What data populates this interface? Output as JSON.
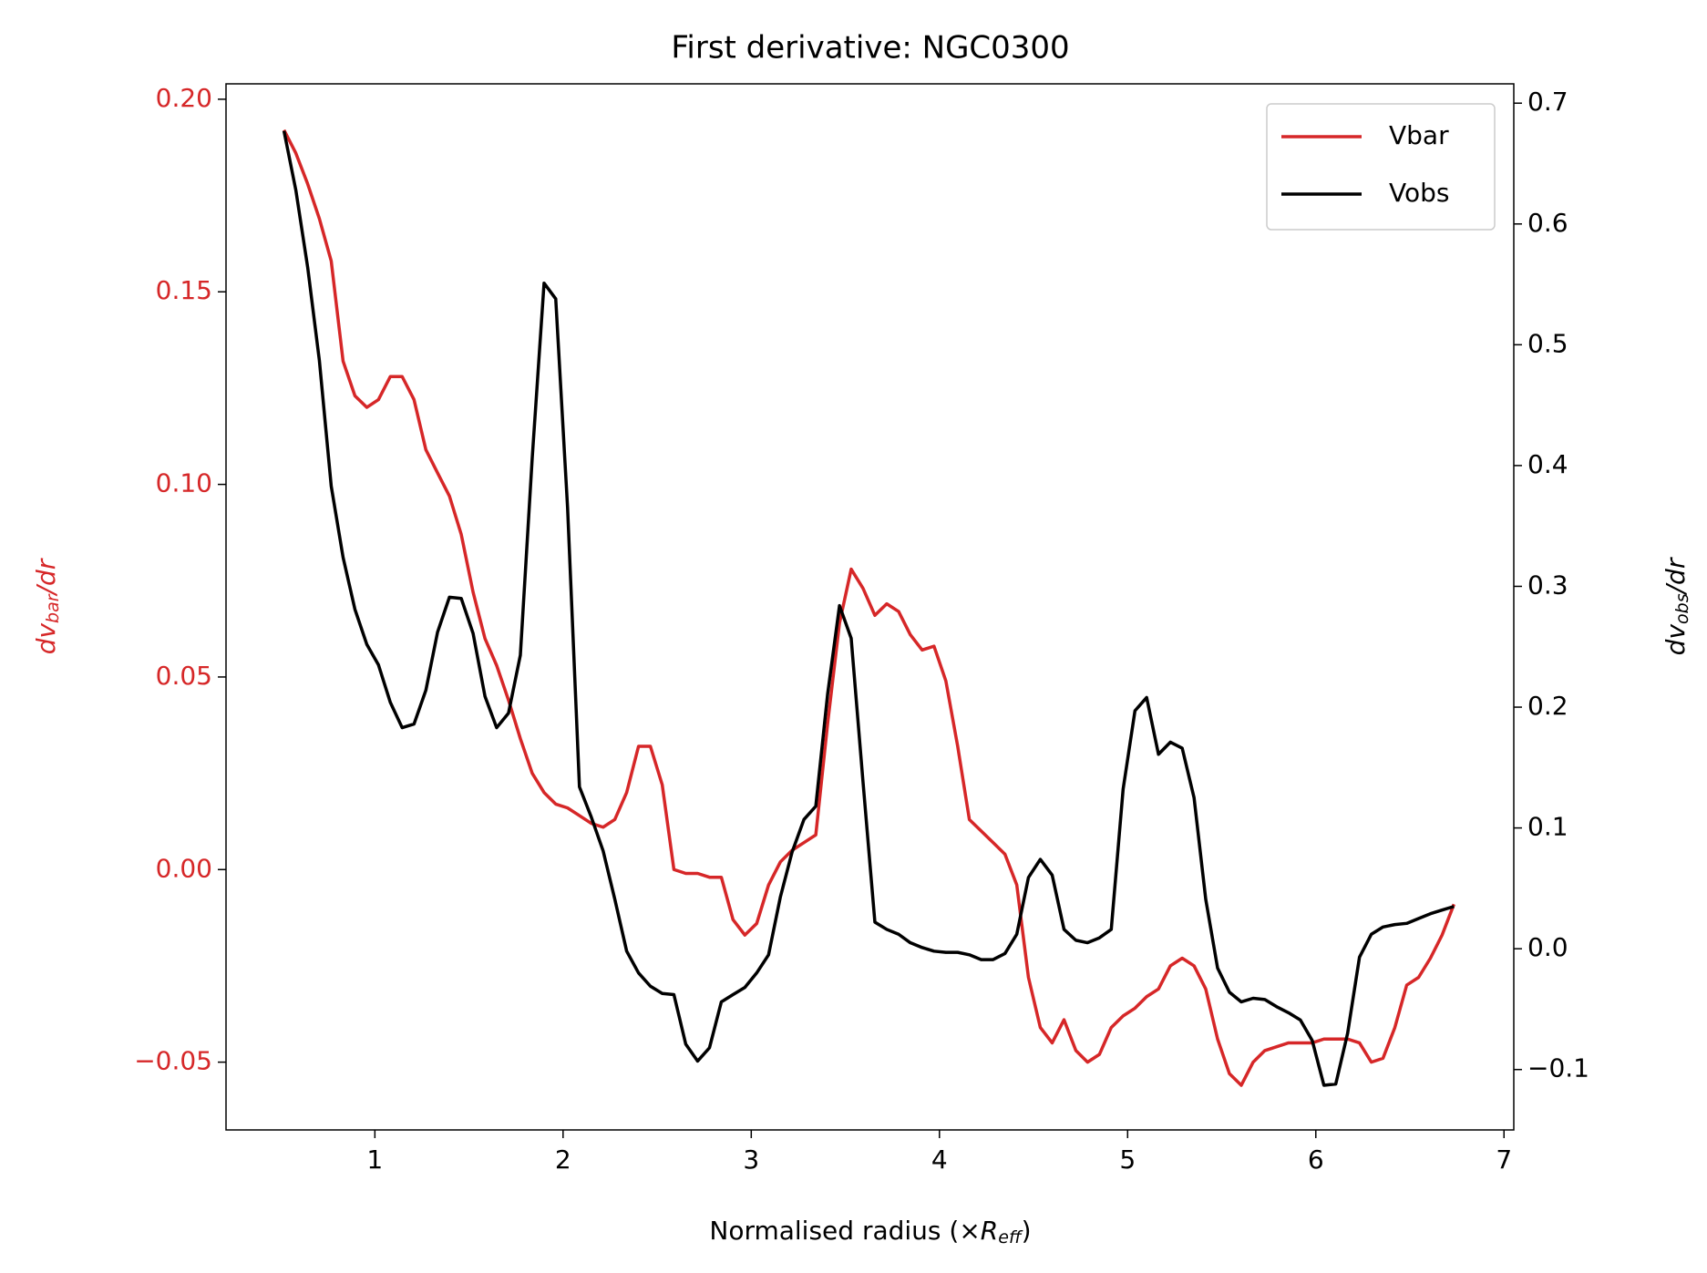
{
  "chart_data": {
    "type": "line",
    "title": "First derivative: NGC0300",
    "x_label": {
      "text": "Normalised radius (×",
      "symbol": "R",
      "subscript": "eff",
      "close": ")"
    },
    "y_label": {
      "main": "dv",
      "sub": "bar",
      "rest": "/dr"
    },
    "y2_label": {
      "main": "dv",
      "sub": "obs",
      "rest": "/dr"
    },
    "y_label_color": "#d62728",
    "legend": "upper right",
    "x": [
      0.517,
      0.58,
      0.643,
      0.705,
      0.768,
      0.831,
      0.894,
      0.957,
      1.019,
      1.082,
      1.145,
      1.208,
      1.271,
      1.333,
      1.396,
      1.459,
      1.522,
      1.585,
      1.647,
      1.71,
      1.773,
      1.836,
      1.899,
      1.961,
      2.024,
      2.087,
      2.15,
      2.213,
      2.275,
      2.338,
      2.401,
      2.464,
      2.527,
      2.589,
      2.652,
      2.715,
      2.778,
      2.841,
      2.903,
      2.966,
      3.029,
      3.092,
      3.155,
      3.217,
      3.28,
      3.343,
      3.406,
      3.469,
      3.531,
      3.594,
      3.657,
      3.72,
      3.783,
      3.845,
      3.908,
      3.971,
      4.034,
      4.097,
      4.159,
      4.222,
      4.285,
      4.348,
      4.411,
      4.473,
      4.536,
      4.599,
      4.662,
      4.725,
      4.787,
      4.85,
      4.913,
      4.976,
      5.039,
      5.101,
      5.164,
      5.227,
      5.29,
      5.353,
      5.415,
      5.478,
      5.541,
      5.604,
      5.667,
      5.729,
      5.792,
      5.855,
      5.918,
      5.981,
      6.043,
      6.106,
      6.169,
      6.232,
      6.295,
      6.357,
      6.42,
      6.483,
      6.546,
      6.609,
      6.671,
      6.734
    ],
    "series": [
      {
        "name": "Vbar",
        "color": "#d62728",
        "axis": "y",
        "values": [
          0.192,
          0.186,
          0.178,
          0.169,
          0.158,
          0.132,
          0.123,
          0.12,
          0.122,
          0.128,
          0.128,
          0.122,
          0.109,
          0.103,
          0.097,
          0.087,
          0.072,
          0.06,
          0.053,
          0.044,
          0.034,
          0.025,
          0.02,
          0.017,
          0.016,
          0.014,
          0.012,
          0.011,
          0.013,
          0.02,
          0.032,
          0.032,
          0.022,
          0.0,
          -0.001,
          -0.001,
          -0.002,
          -0.002,
          -0.013,
          -0.017,
          -0.014,
          -0.004,
          0.002,
          0.005,
          0.007,
          0.009,
          0.038,
          0.064,
          0.078,
          0.073,
          0.066,
          0.069,
          0.067,
          0.061,
          0.057,
          0.058,
          0.049,
          0.032,
          0.013,
          0.01,
          0.007,
          0.004,
          -0.004,
          -0.028,
          -0.041,
          -0.045,
          -0.039,
          -0.047,
          -0.05,
          -0.048,
          -0.041,
          -0.038,
          -0.036,
          -0.033,
          -0.031,
          -0.025,
          -0.023,
          -0.025,
          -0.031,
          -0.044,
          -0.053,
          -0.056,
          -0.05,
          -0.047,
          -0.046,
          -0.045,
          -0.045,
          -0.045,
          -0.044,
          -0.044,
          -0.044,
          -0.045,
          -0.05,
          -0.049,
          -0.041,
          -0.03,
          -0.028,
          -0.023,
          -0.017,
          -0.009
        ]
      },
      {
        "name": "Vobs",
        "color": "#000000",
        "axis": "y2",
        "values": [
          0.677,
          0.628,
          0.564,
          0.487,
          0.383,
          0.324,
          0.281,
          0.252,
          0.235,
          0.204,
          0.183,
          0.186,
          0.214,
          0.262,
          0.291,
          0.29,
          0.261,
          0.209,
          0.183,
          0.195,
          0.243,
          0.406,
          0.551,
          0.538,
          0.365,
          0.134,
          0.109,
          0.081,
          0.041,
          -0.002,
          -0.02,
          -0.031,
          -0.037,
          -0.038,
          -0.079,
          -0.093,
          -0.082,
          -0.044,
          -0.038,
          -0.032,
          -0.02,
          -0.005,
          0.043,
          0.08,
          0.107,
          0.118,
          0.211,
          0.284,
          0.257,
          0.138,
          0.022,
          0.016,
          0.012,
          0.005,
          0.001,
          -0.002,
          -0.003,
          -0.003,
          -0.005,
          -0.009,
          -0.009,
          -0.004,
          0.012,
          0.059,
          0.074,
          0.061,
          0.016,
          0.007,
          0.005,
          0.009,
          0.016,
          0.132,
          0.197,
          0.208,
          0.161,
          0.171,
          0.166,
          0.125,
          0.041,
          -0.016,
          -0.036,
          -0.044,
          -0.041,
          -0.042,
          -0.048,
          -0.053,
          -0.059,
          -0.076,
          -0.113,
          -0.112,
          -0.07,
          -0.007,
          0.012,
          0.018,
          0.02,
          0.021,
          0.025,
          0.029,
          0.032,
          0.035
        ]
      }
    ],
    "xlim": [
      0.209,
      7.052
    ],
    "xticks": [
      1,
      2,
      3,
      4,
      5,
      6,
      7
    ],
    "ylim": [
      -0.0676,
      0.204
    ],
    "yticks": [
      {
        "value": -0.05,
        "label": "−0.05"
      },
      {
        "value": 0,
        "label": "0.00"
      },
      {
        "value": 0.05,
        "label": "0.05"
      },
      {
        "value": 0.1,
        "label": "0.10"
      },
      {
        "value": 0.15,
        "label": "0.15"
      },
      {
        "value": 0.2,
        "label": "0.20"
      }
    ],
    "y2lim": [
      -0.15,
      0.716
    ],
    "y2ticks": [
      {
        "value": -0.1,
        "label": "−0.1"
      },
      {
        "value": 0,
        "label": "0.0"
      },
      0.1,
      0.2,
      0.3,
      0.4,
      0.5,
      0.6,
      0.7
    ]
  }
}
